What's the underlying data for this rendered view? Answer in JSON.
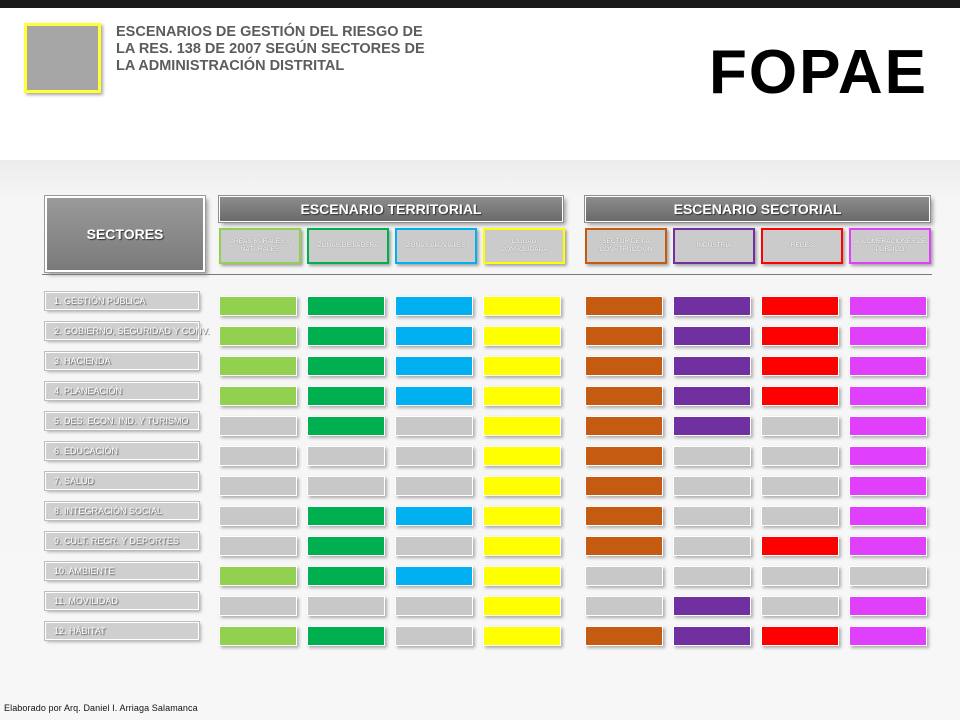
{
  "header": {
    "title_lines": [
      "ESCENARIOS  DE  GESTIÓN DEL RIESGO DE",
      "LA RES. 138 DE 2007 SEGÚN SECTORES DE",
      "LA ADMINISTRACIÓN DISTRITAL"
    ],
    "brand": "FOPAE"
  },
  "sectores_label": "SECTORES",
  "territorial": {
    "title": "ESCENARIO TERRITORIAL",
    "columns": [
      {
        "label": "ÁREAS RURALES Y NATURALES",
        "color": "#92d050"
      },
      {
        "label": "ZONAS DE LADERA",
        "color": "#00b050"
      },
      {
        "label": "ZONAS ALUVIALES",
        "color": "#00b0f0"
      },
      {
        "label": "CIUDAD CONSOLIDADA",
        "color": "#ffff00"
      }
    ]
  },
  "sectorial": {
    "title": "ESCENARIO SECTORIAL",
    "columns": [
      {
        "label": "SECTOR DE LA CONSTRUCCIÓN",
        "color": "#c55a11"
      },
      {
        "label": "INDUSTRIA",
        "color": "#7030a0"
      },
      {
        "label": "REDES",
        "color": "#ff0000"
      },
      {
        "label": "AGLOMERACIONES DE PÚBLICO",
        "color": "#e040fb"
      }
    ]
  },
  "inactive_color": "#c8c8c8",
  "rows": [
    {
      "label": "1. GESTIÓN PÚBLICA",
      "cells": [
        1,
        1,
        1,
        1,
        1,
        1,
        1,
        1
      ]
    },
    {
      "label": "2. GOBIERNO, SEGURIDAD  Y CONV.",
      "cells": [
        1,
        1,
        1,
        1,
        1,
        1,
        1,
        1
      ]
    },
    {
      "label": "3. HACIENDA",
      "cells": [
        1,
        1,
        1,
        1,
        1,
        1,
        1,
        1
      ]
    },
    {
      "label": "4. PLANEACIÓN",
      "cells": [
        1,
        1,
        1,
        1,
        1,
        1,
        1,
        1
      ]
    },
    {
      "label": "5. DES. ECON. IND. Y TURISMO",
      "cells": [
        0,
        1,
        0,
        1,
        1,
        1,
        0,
        1
      ]
    },
    {
      "label": "6. EDUCACIÓN",
      "cells": [
        0,
        0,
        0,
        1,
        1,
        0,
        0,
        1
      ]
    },
    {
      "label": "7. SALUD",
      "cells": [
        0,
        0,
        0,
        1,
        1,
        0,
        0,
        1
      ]
    },
    {
      "label": "8. INTEGRACIÓN SOCIAL",
      "cells": [
        0,
        1,
        1,
        1,
        1,
        0,
        0,
        1
      ]
    },
    {
      "label": "9. CULT. RECR. Y DEPORTES",
      "cells": [
        0,
        1,
        0,
        1,
        1,
        0,
        1,
        1
      ]
    },
    {
      "label": "10. AMBIENTE",
      "cells": [
        1,
        1,
        1,
        1,
        0,
        0,
        0,
        0
      ]
    },
    {
      "label": "11. MOVILIDAD",
      "cells": [
        0,
        0,
        0,
        1,
        0,
        1,
        0,
        1
      ]
    },
    {
      "label": "12. HÁBITAT",
      "cells": [
        1,
        1,
        0,
        1,
        1,
        1,
        1,
        1
      ]
    }
  ],
  "footer": "Elaborado por Arq. Daniel I. Arriaga Salamanca"
}
